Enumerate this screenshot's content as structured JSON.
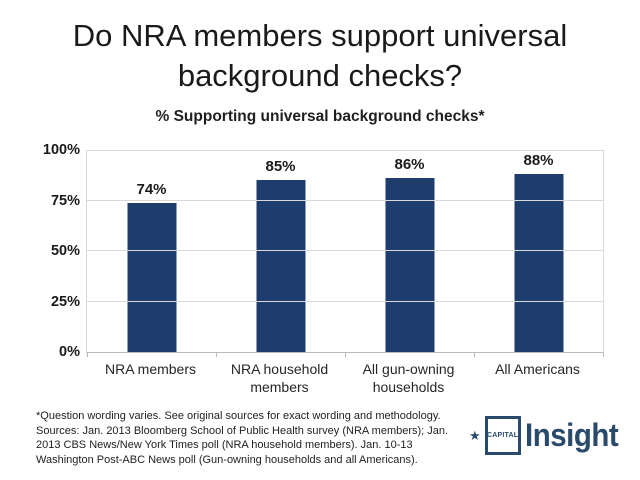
{
  "title": {
    "line1": "Do NRA members support universal",
    "line2": "background checks?"
  },
  "subtitle": "% Supporting universal background checks*",
  "chart_data": {
    "type": "bar",
    "title": "% Supporting universal background checks*",
    "categories": [
      "NRA members",
      "NRA household members",
      "All gun-owning households",
      "All Americans"
    ],
    "values": [
      74,
      85,
      86,
      88
    ],
    "value_labels": [
      "74%",
      "85%",
      "86%",
      "88%"
    ],
    "xlabel": "",
    "ylabel": "",
    "ylim": [
      0,
      100
    ],
    "yticks": [
      "0%",
      "25%",
      "50%",
      "75%",
      "100%"
    ],
    "grid": true,
    "legend": "none",
    "bar_color": "#1f3d6c"
  },
  "footnote": {
    "lines": [
      "*Question wording varies. See original sources for exact wording and methodology.",
      "Sources: Jan. 2013 Bloomberg School of Public Health survey (NRA members); Jan.",
      "2013 CBS News/New York Times poll (NRA household members). Jan. 10-13",
      "Washington Post-ABC News poll (Gun-owning households and all Americans)."
    ]
  },
  "logo": {
    "star": "★",
    "box_text": "CAPITAL",
    "name": "Insight",
    "color": "#2a4a6b"
  }
}
